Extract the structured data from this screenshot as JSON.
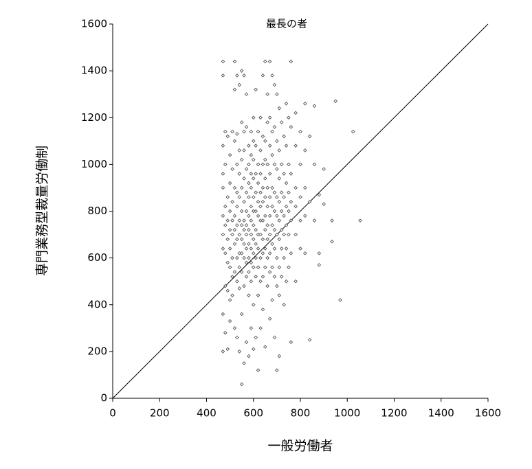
{
  "chart_data": {
    "type": "scatter",
    "title": "最長の者",
    "x_label": "一般労働者",
    "y_label": "専門業務型裁量労働制",
    "xlim": [
      0,
      1600
    ],
    "ylim": [
      0,
      1600
    ],
    "xticks": [
      0,
      200,
      400,
      600,
      800,
      1000,
      1200,
      1400,
      1600
    ],
    "yticks": [
      0,
      200,
      400,
      600,
      800,
      1000,
      1200,
      1400,
      1600
    ],
    "reference_line": {
      "x": [
        0,
        1600
      ],
      "y": [
        0,
        1600
      ],
      "color": "#000000"
    },
    "series": [
      {
        "color": "#555555",
        "x": [
          470,
          470,
          470,
          470,
          470,
          470,
          470,
          470,
          470,
          470,
          480,
          480,
          480,
          480,
          480,
          480,
          480,
          490,
          490,
          490,
          490,
          490,
          490,
          490,
          500,
          500,
          500,
          500,
          500,
          500,
          500,
          500,
          510,
          510,
          510,
          510,
          510,
          510,
          510,
          510,
          520,
          520,
          520,
          520,
          520,
          520,
          520,
          520,
          520,
          530,
          530,
          530,
          530,
          530,
          530,
          530,
          530,
          530,
          530,
          540,
          540,
          540,
          540,
          540,
          540,
          540,
          540,
          540,
          540,
          550,
          550,
          550,
          550,
          550,
          550,
          550,
          550,
          550,
          550,
          550,
          560,
          560,
          560,
          560,
          560,
          560,
          560,
          560,
          560,
          560,
          560,
          570,
          570,
          570,
          570,
          570,
          570,
          570,
          570,
          570,
          570,
          570,
          580,
          580,
          580,
          580,
          580,
          580,
          580,
          580,
          580,
          580,
          580,
          590,
          590,
          590,
          590,
          590,
          590,
          590,
          590,
          590,
          590,
          590,
          600,
          600,
          600,
          600,
          600,
          600,
          600,
          600,
          600,
          600,
          600,
          600,
          610,
          610,
          610,
          610,
          610,
          610,
          610,
          610,
          610,
          610,
          620,
          620,
          620,
          620,
          620,
          620,
          620,
          620,
          620,
          620,
          630,
          630,
          630,
          630,
          630,
          630,
          630,
          630,
          630,
          630,
          640,
          640,
          640,
          640,
          640,
          640,
          640,
          640,
          640,
          640,
          650,
          650,
          650,
          650,
          650,
          650,
          650,
          650,
          650,
          650,
          660,
          660,
          660,
          660,
          660,
          660,
          660,
          660,
          660,
          670,
          670,
          670,
          670,
          670,
          670,
          670,
          670,
          670,
          670,
          680,
          680,
          680,
          680,
          680,
          680,
          680,
          680,
          680,
          690,
          690,
          690,
          690,
          690,
          690,
          690,
          690,
          690,
          700,
          700,
          700,
          700,
          700,
          700,
          700,
          700,
          700,
          710,
          710,
          710,
          710,
          710,
          710,
          710,
          710,
          710,
          720,
          720,
          720,
          720,
          720,
          720,
          720,
          730,
          730,
          730,
          730,
          730,
          730,
          730,
          740,
          740,
          740,
          740,
          740,
          740,
          740,
          750,
          750,
          750,
          750,
          750,
          750,
          760,
          760,
          760,
          760,
          760,
          760,
          760,
          780,
          780,
          780,
          780,
          780,
          780,
          800,
          800,
          800,
          800,
          800,
          820,
          820,
          820,
          820,
          820,
          840,
          840,
          840,
          860,
          860,
          860,
          880,
          880,
          880,
          900,
          900,
          935,
          935,
          950,
          970,
          1025,
          1055
        ],
        "values": [
          1440,
          1380,
          1080,
          960,
          900,
          780,
          700,
          640,
          360,
          200,
          1140,
          1000,
          820,
          740,
          620,
          480,
          280,
          1120,
          860,
          760,
          680,
          580,
          460,
          210,
          1040,
          920,
          800,
          720,
          640,
          560,
          420,
          330,
          1140,
          980,
          840,
          760,
          700,
          600,
          520,
          440,
          1440,
          1320,
          1100,
          900,
          780,
          720,
          660,
          540,
          300,
          1380,
          1130,
          1000,
          880,
          820,
          740,
          680,
          600,
          500,
          260,
          1340,
          1060,
          960,
          860,
          760,
          700,
          620,
          560,
          470,
          200,
          1400,
          1180,
          1020,
          900,
          800,
          740,
          680,
          620,
          540,
          360,
          60,
          1380,
          1140,
          1060,
          940,
          840,
          760,
          720,
          660,
          600,
          480,
          150,
          1300,
          1160,
          980,
          880,
          800,
          740,
          700,
          640,
          580,
          520,
          240,
          1080,
          1000,
          920,
          860,
          780,
          720,
          660,
          600,
          540,
          440,
          180,
          1140,
          1040,
          960,
          900,
          820,
          760,
          700,
          640,
          580,
          500,
          300,
          1200,
          1100,
          1020,
          940,
          860,
          800,
          740,
          680,
          620,
          560,
          400,
          210,
          1320,
          1080,
          960,
          880,
          800,
          720,
          660,
          600,
          520,
          260,
          1140,
          1000,
          920,
          840,
          780,
          700,
          640,
          560,
          440,
          120,
          1200,
          1060,
          960,
          880,
          820,
          760,
          700,
          600,
          500,
          300,
          1380,
          1120,
          1000,
          900,
          840,
          760,
          680,
          620,
          520,
          380,
          1440,
          1100,
          1020,
          940,
          860,
          780,
          720,
          640,
          560,
          220,
          1300,
          1180,
          1000,
          900,
          820,
          740,
          680,
          600,
          480,
          1440,
          1200,
          1080,
          960,
          860,
          780,
          700,
          620,
          540,
          340,
          1380,
          1140,
          1040,
          900,
          820,
          740,
          660,
          560,
          420,
          1340,
          1160,
          1000,
          880,
          800,
          720,
          640,
          520,
          260,
          1300,
          1100,
          980,
          860,
          780,
          700,
          600,
          480,
          120,
          1240,
          1060,
          940,
          840,
          760,
          680,
          560,
          440,
          180,
          1180,
          1000,
          880,
          800,
          720,
          640,
          520,
          1120,
          960,
          860,
          780,
          700,
          600,
          400,
          1260,
          1080,
          920,
          820,
          740,
          640,
          500,
          1200,
          1000,
          880,
          800,
          700,
          560,
          1440,
          1160,
          960,
          840,
          760,
          620,
          240,
          1220,
          1080,
          900,
          820,
          700,
          500,
          1140,
          1000,
          860,
          760,
          640,
          1260,
          1060,
          900,
          780,
          620,
          1120,
          840,
          250,
          1250,
          1000,
          760,
          870,
          570,
          620,
          830,
          980,
          670,
          760,
          1270,
          420,
          1140,
          760
        ]
      }
    ]
  }
}
